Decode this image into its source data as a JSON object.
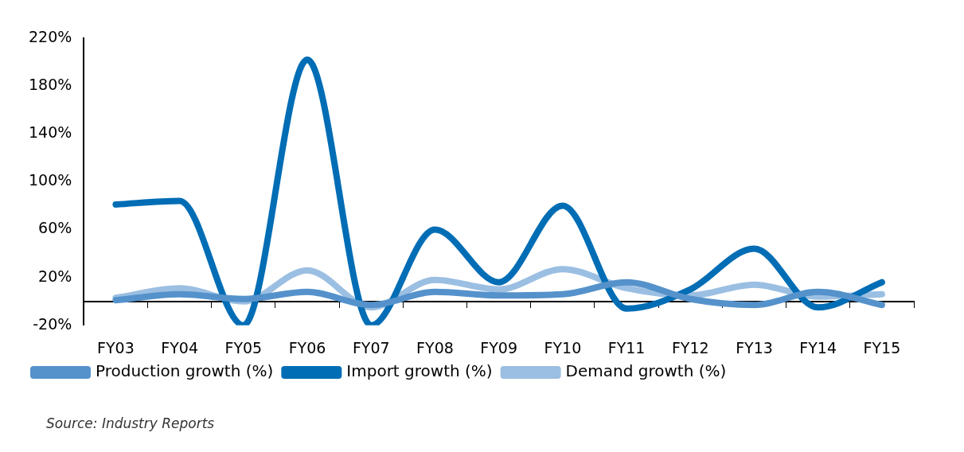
{
  "chart_data": {
    "type": "line",
    "categories": [
      "FY03",
      "FY04",
      "FY05",
      "FY06",
      "FY07",
      "FY08",
      "FY09",
      "FY10",
      "FY11",
      "FY12",
      "FY13",
      "FY14",
      "FY15"
    ],
    "series": [
      {
        "name": "Production growth (%)",
        "color": "#5592cb",
        "values": [
          1,
          6,
          2,
          8,
          -3,
          8,
          5,
          6,
          16,
          2,
          -3,
          8,
          -3
        ]
      },
      {
        "name": "Import growth (%)",
        "color": "#006db5",
        "values": [
          81,
          84,
          -20,
          202,
          -20,
          60,
          16,
          80,
          -6,
          10,
          44,
          -5,
          16
        ]
      },
      {
        "name": "Demand growth (%)",
        "color": "#9bbfe2",
        "values": [
          3,
          11,
          0,
          26,
          -5,
          18,
          10,
          27,
          11,
          5,
          14,
          4,
          6
        ]
      }
    ],
    "ylim": [
      -20,
      220
    ],
    "yticks": [
      {
        "value": -20,
        "label": "-20%"
      },
      {
        "value": 20,
        "label": "20%"
      },
      {
        "value": 60,
        "label": "60%"
      },
      {
        "value": 100,
        "label": "100%"
      },
      {
        "value": 140,
        "label": "140%"
      },
      {
        "value": 180,
        "label": "180%"
      },
      {
        "value": 220,
        "label": "220%"
      }
    ],
    "grid": false,
    "legend": "bottom",
    "marker": "none",
    "line_style": "solid",
    "annotations": [
      "Source: Industry Reports"
    ]
  }
}
